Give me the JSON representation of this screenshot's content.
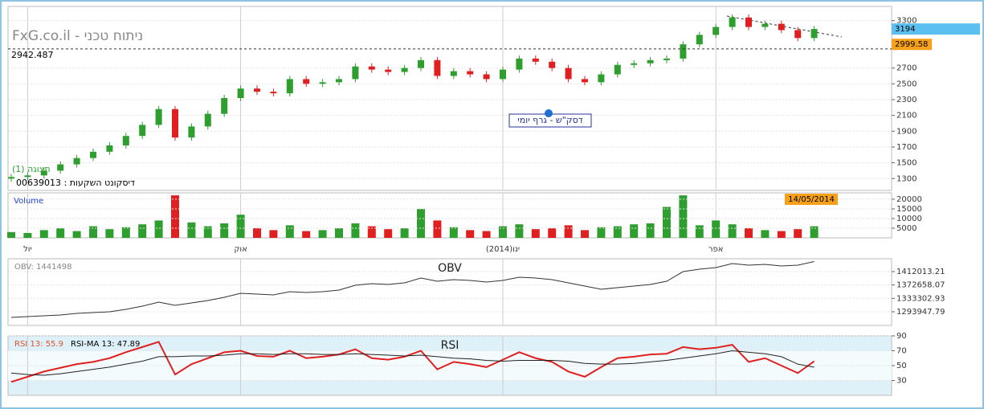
{
  "header": {
    "title": "FxG.co.il - ניתוח טכני"
  },
  "chart_data": [
    {
      "type": "candlestick",
      "title": "דסק\"ש - גרף יומי",
      "subtitle": "00639013 : דיסקונט השקעות",
      "view_label": "תצוגה (1)",
      "date_label": "14/05/2014",
      "categories": [
        null,
        "יול",
        null,
        null,
        null,
        null,
        null,
        null,
        null,
        null,
        null,
        null,
        null,
        null,
        "אוק",
        null,
        null,
        null,
        null,
        null,
        null,
        null,
        null,
        null,
        null,
        null,
        null,
        null,
        null,
        null,
        "ינו(2014)",
        null,
        null,
        null,
        null,
        null,
        null,
        null,
        null,
        null,
        null,
        null,
        null,
        "אפר",
        null,
        null,
        null,
        null,
        null,
        null
      ],
      "open": [
        1300,
        1320,
        1340,
        1400,
        1480,
        1560,
        1640,
        1720,
        1840,
        1980,
        2180,
        1820,
        1960,
        2120,
        2320,
        2440,
        2400,
        2380,
        2560,
        2500,
        2520,
        2560,
        2720,
        2680,
        2650,
        2700,
        2800,
        2600,
        2660,
        2620,
        2560,
        2680,
        2820,
        2780,
        2700,
        2560,
        2520,
        2620,
        2740,
        2760,
        2800,
        2820,
        3000,
        3120,
        3220,
        3340,
        3220,
        3260,
        3180,
        3080
      ],
      "high": [
        1360,
        1380,
        1440,
        1520,
        1600,
        1680,
        1760,
        1880,
        2020,
        2220,
        2220,
        2000,
        2160,
        2360,
        2480,
        2480,
        2440,
        2600,
        2600,
        2560,
        2600,
        2760,
        2760,
        2720,
        2740,
        2840,
        2840,
        2700,
        2700,
        2660,
        2720,
        2860,
        2860,
        2820,
        2740,
        2600,
        2660,
        2780,
        2800,
        2840,
        2860,
        3040,
        3160,
        3260,
        3380,
        3380,
        3300,
        3300,
        3220,
        3234
      ],
      "low": [
        1260,
        1280,
        1300,
        1360,
        1440,
        1520,
        1600,
        1680,
        1800,
        1940,
        1780,
        1780,
        1920,
        2080,
        2280,
        2360,
        2340,
        2340,
        2460,
        2460,
        2480,
        2520,
        2640,
        2610,
        2610,
        2660,
        2560,
        2560,
        2580,
        2520,
        2520,
        2640,
        2740,
        2660,
        2520,
        2480,
        2480,
        2580,
        2700,
        2720,
        2760,
        2780,
        2960,
        3080,
        3180,
        3180,
        3180,
        3140,
        3040,
        3040
      ],
      "close": [
        1320,
        1340,
        1400,
        1480,
        1560,
        1640,
        1720,
        1840,
        1980,
        2180,
        1820,
        1960,
        2120,
        2320,
        2440,
        2400,
        2380,
        2560,
        2500,
        2520,
        2560,
        2720,
        2680,
        2650,
        2700,
        2800,
        2600,
        2660,
        2620,
        2560,
        2680,
        2820,
        2780,
        2700,
        2560,
        2520,
        2620,
        2740,
        2760,
        2800,
        2820,
        3000,
        3120,
        3220,
        3340,
        3220,
        3260,
        3180,
        3080,
        3194
      ],
      "up_color": "#2e9e2e",
      "down_color": "#e02020",
      "ylim": [
        1150,
        3480
      ],
      "yticks": [
        1300,
        1500,
        1700,
        1900,
        2100,
        2300,
        2500,
        2700,
        3300
      ],
      "grid": true,
      "annotations": [
        {
          "value": 2942.487,
          "label": "2942.487"
        },
        {
          "value": 2999.58,
          "label": "2999.58"
        }
      ],
      "volume": {
        "name": "Volume",
        "values": [
          3000,
          2500,
          4000,
          5000,
          3500,
          6000,
          4500,
          5500,
          7000,
          9000,
          22000,
          8000,
          6000,
          7500,
          12000,
          5000,
          4000,
          6500,
          3500,
          4000,
          5000,
          7500,
          6000,
          4500,
          5000,
          15000,
          9000,
          5500,
          4000,
          3500,
          6000,
          7000,
          4500,
          5000,
          6500,
          4000,
          5500,
          6000,
          7000,
          7500,
          16000,
          22000,
          6500,
          9000,
          7000,
          5000,
          4000,
          3500,
          4500,
          6000
        ],
        "ylim": [
          0,
          23300
        ],
        "yticks": [
          5000,
          10000,
          15000,
          20000
        ]
      }
    },
    {
      "type": "line",
      "title": "OBV",
      "legend_label": "OBV: 1441498",
      "series": [
        {
          "name": "OBV",
          "color": "#333333",
          "values": [
            1277400,
            1279800,
            1282100,
            1284500,
            1289200,
            1291600,
            1293900,
            1301000,
            1310500,
            1322300,
            1312800,
            1319900,
            1327000,
            1336400,
            1348300,
            1345900,
            1343500,
            1352900,
            1350600,
            1352900,
            1357700,
            1371900,
            1376600,
            1374200,
            1378900,
            1393100,
            1383600,
            1388300,
            1386000,
            1381300,
            1386000,
            1395500,
            1393100,
            1388300,
            1378900,
            1369500,
            1360100,
            1364800,
            1369500,
            1374200,
            1383600,
            1412000,
            1419100,
            1423800,
            1435600,
            1430900,
            1433300,
            1428600,
            1430900,
            1441498
          ]
        }
      ],
      "ylim": [
        1253800,
        1449800
      ],
      "yticks": [
        1293947.79,
        1333302.93,
        1372658.07,
        1412013.21
      ]
    },
    {
      "type": "line",
      "title": "RSI",
      "band": [
        30,
        70
      ],
      "series": [
        {
          "name": "RSI 13: 55.9",
          "color": "#e02020",
          "values": [
            28,
            35,
            42,
            47,
            52,
            55,
            60,
            68,
            75,
            82,
            38,
            52,
            60,
            68,
            70,
            63,
            62,
            70,
            60,
            62,
            65,
            72,
            60,
            58,
            62,
            70,
            45,
            55,
            52,
            48,
            58,
            68,
            60,
            55,
            42,
            35,
            48,
            60,
            62,
            65,
            66,
            75,
            72,
            74,
            78,
            55,
            60,
            50,
            40,
            55.9
          ]
        },
        {
          "name": "RSI-MA 13: 47.89",
          "color": "#222222",
          "values": [
            40,
            38,
            37,
            39,
            42,
            45,
            48,
            52,
            56,
            62,
            62,
            63,
            63,
            64,
            66,
            66,
            65,
            66,
            66,
            65,
            65,
            66,
            65,
            64,
            63,
            64,
            62,
            60,
            59,
            57,
            56,
            57,
            57,
            57,
            56,
            53,
            52,
            52,
            53,
            55,
            57,
            60,
            63,
            66,
            70,
            68,
            66,
            62,
            52,
            47.89
          ]
        }
      ],
      "ylim": [
        10,
        90
      ],
      "yticks": [
        30,
        50,
        70,
        90
      ]
    }
  ]
}
